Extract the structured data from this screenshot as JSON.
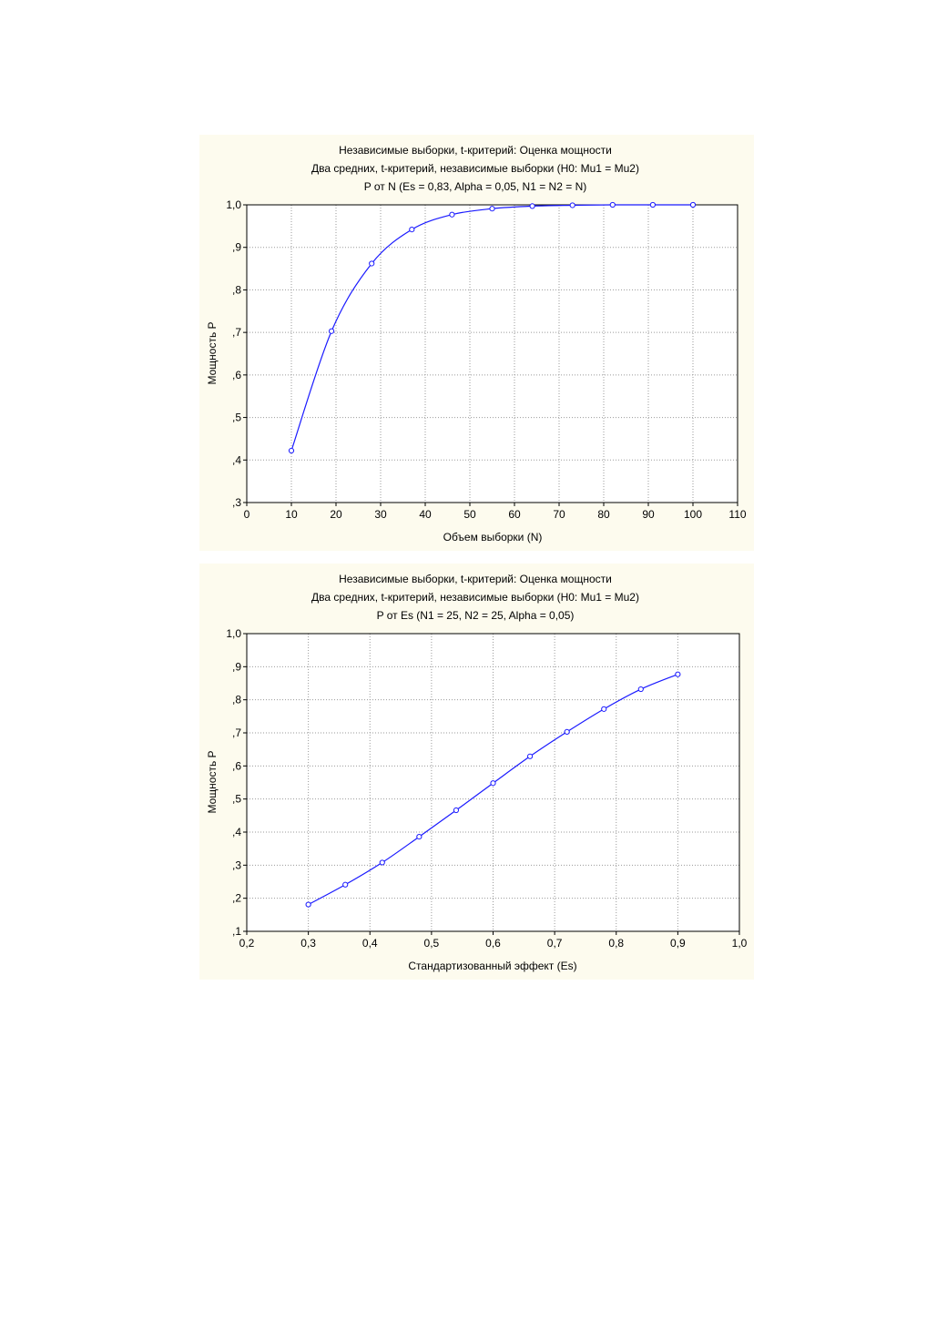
{
  "colors": {
    "panel_bg": "#fdfbee",
    "plot_bg": "#ffffff",
    "series": "#1a1aff",
    "grid": "#9a9a9a"
  },
  "chart_data": [
    {
      "type": "line",
      "title": "Независимые выборки,  t-критерий: Оценка мощности",
      "subtitle": "Два средних, t-критерий, независимые выборки (H0:  Mu1 = Mu2)",
      "subtitle2": "P от N (Es = 0,83, Alpha = 0,05, N1 = N2 = N)",
      "xlabel": "Объем выборки (N)",
      "ylabel": "Мощность P",
      "xlim": [
        0,
        110
      ],
      "ylim": [
        0.3,
        1.0
      ],
      "xticks": [
        0,
        10,
        20,
        30,
        40,
        50,
        60,
        70,
        80,
        90,
        100,
        110
      ],
      "xtick_labels": [
        "0",
        "10",
        "20",
        "30",
        "40",
        "50",
        "60",
        "70",
        "80",
        "90",
        "100",
        "110"
      ],
      "yticks": [
        0.3,
        0.4,
        0.5,
        0.6,
        0.7,
        0.8,
        0.9,
        1.0
      ],
      "ytick_labels": [
        ",3",
        ",4",
        ",5",
        ",6",
        ",7",
        ",8",
        ",9",
        "1,0"
      ],
      "grid": true,
      "series": [
        {
          "x": [
            10,
            19,
            28,
            37,
            46,
            55,
            64,
            73,
            82,
            91,
            100
          ],
          "y": [
            0.422,
            0.703,
            0.862,
            0.942,
            0.977,
            0.991,
            0.997,
            0.999,
            1.0,
            1.0,
            1.0
          ]
        }
      ]
    },
    {
      "type": "line",
      "title": "Независимые выборки,  t-критерий: Оценка мощности",
      "subtitle": "Два средних, t-критерий, независимые выборки (H0:  Mu1 = Mu2)",
      "subtitle2": "P от Es (N1 = 25, N2 = 25, Alpha = 0,05)",
      "xlabel": "Стандартизованный эффект (Es)",
      "ylabel": "Мощность P",
      "xlim": [
        0.2,
        1.0
      ],
      "ylim": [
        0.1,
        1.0
      ],
      "xticks": [
        0.2,
        0.3,
        0.4,
        0.5,
        0.6,
        0.7,
        0.8,
        0.9,
        1.0
      ],
      "xtick_labels": [
        "0,2",
        "0,3",
        "0,4",
        "0,5",
        "0,6",
        "0,7",
        "0,8",
        "0,9",
        "1,0"
      ],
      "yticks": [
        0.1,
        0.2,
        0.3,
        0.4,
        0.5,
        0.6,
        0.7,
        0.8,
        0.9,
        1.0
      ],
      "ytick_labels": [
        ",1",
        ",2",
        ",3",
        ",4",
        ",5",
        ",6",
        ",7",
        ",8",
        ",9",
        "1,0"
      ],
      "grid": true,
      "series": [
        {
          "x": [
            0.3,
            0.36,
            0.42,
            0.48,
            0.54,
            0.6,
            0.66,
            0.72,
            0.78,
            0.84,
            0.9
          ],
          "y": [
            0.181,
            0.241,
            0.308,
            0.386,
            0.466,
            0.548,
            0.629,
            0.703,
            0.772,
            0.832,
            0.877
          ]
        }
      ]
    }
  ]
}
